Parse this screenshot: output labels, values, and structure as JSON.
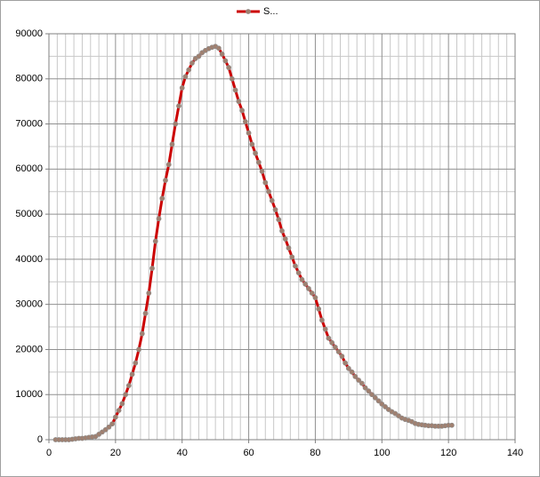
{
  "chart_data": {
    "type": "line",
    "x": [
      2,
      3,
      4,
      5,
      6,
      7,
      8,
      9,
      10,
      11,
      12,
      13,
      14,
      15,
      16,
      17,
      18,
      19,
      20,
      21,
      22,
      23,
      24,
      25,
      26,
      27,
      28,
      29,
      30,
      31,
      32,
      33,
      34,
      35,
      36,
      37,
      38,
      39,
      40,
      41,
      42,
      43,
      44,
      45,
      46,
      47,
      48,
      49,
      50,
      51,
      52,
      53,
      54,
      55,
      56,
      57,
      58,
      59,
      60,
      61,
      62,
      63,
      64,
      65,
      66,
      67,
      68,
      69,
      70,
      71,
      72,
      73,
      74,
      75,
      76,
      77,
      78,
      79,
      80,
      81,
      82,
      83,
      84,
      85,
      86,
      87,
      88,
      89,
      90,
      91,
      92,
      93,
      94,
      95,
      96,
      97,
      98,
      99,
      100,
      101,
      102,
      103,
      104,
      105,
      106,
      107,
      108,
      109,
      110,
      111,
      112,
      113,
      114,
      115,
      116,
      117,
      118,
      119,
      120,
      121
    ],
    "series": [
      {
        "name": "S...",
        "color": "#cc0000",
        "marker_color": "#a08070",
        "values": [
          0,
          0,
          0,
          0,
          0,
          100,
          200,
          300,
          300,
          400,
          500,
          600,
          700,
          1200,
          1700,
          2200,
          2800,
          3500,
          5000,
          6500,
          8000,
          10000,
          12000,
          14500,
          17000,
          20000,
          23500,
          28000,
          32500,
          38000,
          44000,
          49000,
          53500,
          57500,
          61000,
          65500,
          70000,
          74000,
          78000,
          80500,
          82000,
          83500,
          84500,
          85000,
          85800,
          86300,
          86700,
          87000,
          87200,
          86800,
          85500,
          84000,
          82500,
          80000,
          77500,
          75000,
          73000,
          70500,
          68000,
          65500,
          63500,
          61500,
          59500,
          57000,
          55000,
          53000,
          51000,
          48800,
          46300,
          44500,
          42500,
          40500,
          38500,
          37000,
          35500,
          34500,
          33500,
          32500,
          31500,
          29000,
          26500,
          24500,
          22500,
          21500,
          20500,
          19500,
          18500,
          17000,
          15800,
          15000,
          14000,
          13200,
          12500,
          11500,
          10800,
          10000,
          9300,
          8600,
          7900,
          7300,
          6700,
          6200,
          5800,
          5300,
          4800,
          4500,
          4300,
          4000,
          3600,
          3400,
          3300,
          3200,
          3100,
          3100,
          3000,
          3000,
          3000,
          3100,
          3200,
          3200
        ]
      }
    ],
    "xlim": [
      0,
      140
    ],
    "xticks": [
      0,
      20,
      40,
      60,
      80,
      100,
      120,
      140
    ],
    "ylim": [
      0,
      90000
    ],
    "yticks": [
      0,
      10000,
      20000,
      30000,
      40000,
      50000,
      60000,
      70000,
      80000,
      90000
    ],
    "grid": true,
    "minor_grid": true,
    "legend": "top"
  }
}
